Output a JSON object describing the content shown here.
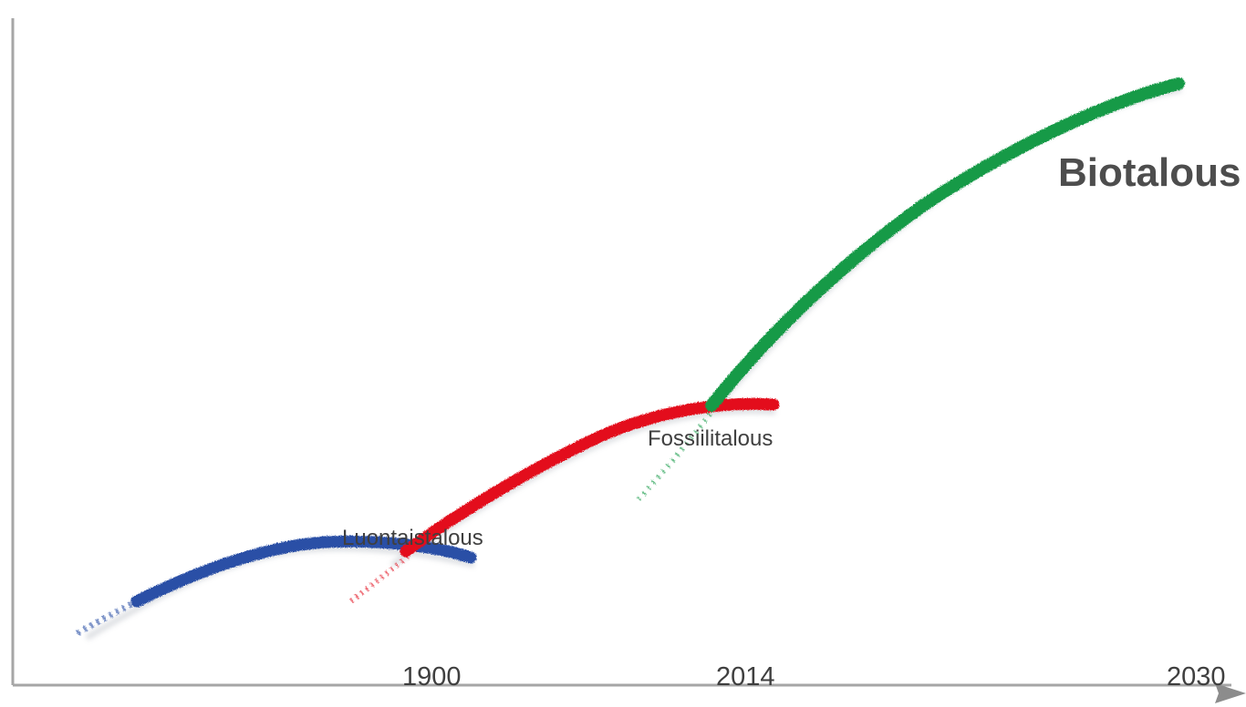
{
  "diagram": {
    "segments": [
      {
        "label": "Luontaistalous",
        "color": "#2a4fa6"
      },
      {
        "label": "Fossiilitalous",
        "color": "#e3101e"
      },
      {
        "label": "Biotalous",
        "color": "#139a46"
      }
    ],
    "x_ticks": [
      "1900",
      "2014",
      "2030"
    ],
    "axis_color": "#a6a6a6"
  }
}
